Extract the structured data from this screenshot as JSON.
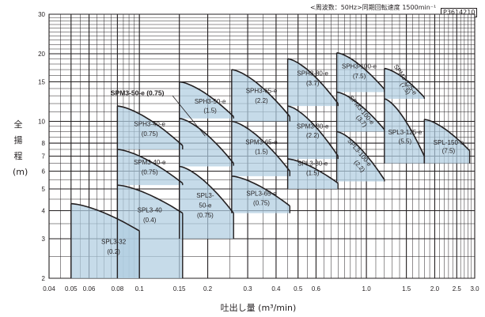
{
  "header": {
    "note": "<周波数：50Hz>同期回転速度 1500min⁻¹",
    "code": "P3614210"
  },
  "chart_data": {
    "type": "area",
    "x_scale": "log",
    "y_scale": "log",
    "xlim": [
      0.04,
      3.0
    ],
    "ylim": [
      2,
      30
    ],
    "xlabel": "吐出し量 (m³/min)",
    "ylabel": [
      "全",
      "揚",
      "程",
      "(m)"
    ],
    "grid": true,
    "x_ticks": [
      {
        "v": 0.04,
        "t": "0.04"
      },
      {
        "v": 0.05,
        "t": "0.05"
      },
      {
        "v": 0.06,
        "t": "0.06"
      },
      {
        "v": 0.08,
        "t": "0.08"
      },
      {
        "v": 0.1,
        "t": "0.1"
      },
      {
        "v": 0.15,
        "t": "0.15"
      },
      {
        "v": 0.2,
        "t": "0.2"
      },
      {
        "v": 0.3,
        "t": "0.3"
      },
      {
        "v": 0.4,
        "t": "0.4"
      },
      {
        "v": 0.5,
        "t": "0.5"
      },
      {
        "v": 0.6,
        "t": "0.6"
      },
      {
        "v": 1.0,
        "t": "1.0"
      },
      {
        "v": 1.5,
        "t": "1.5"
      },
      {
        "v": 2.0,
        "t": "2.0"
      },
      {
        "v": 2.5,
        "t": "2.5"
      },
      {
        "v": 3.0,
        "t": "3.0"
      }
    ],
    "y_ticks": [
      {
        "v": 2,
        "t": "2"
      },
      {
        "v": 3,
        "t": "3"
      },
      {
        "v": 4,
        "t": "4"
      },
      {
        "v": 5,
        "t": "5"
      },
      {
        "v": 6,
        "t": "6"
      },
      {
        "v": 7,
        "t": "7"
      },
      {
        "v": 8,
        "t": "8"
      },
      {
        "v": 10,
        "t": "10"
      },
      {
        "v": 15,
        "t": "15"
      },
      {
        "v": 20,
        "t": "20"
      },
      {
        "v": 30,
        "t": "30"
      }
    ],
    "series": [
      {
        "name": "SPL3-32 (0.2)",
        "x_range": [
          0.05,
          0.1
        ],
        "h_left": 4.3,
        "h_right": 3.25,
        "floor": 2.0,
        "label": [
          {
            "text": "SPL3-32",
            "x": 0.077,
            "y": 2.9
          },
          {
            "text": "(0.2)",
            "x": 0.077,
            "y": 2.62
          }
        ]
      },
      {
        "name": "SPL3-40 (0.4)",
        "x_range": [
          0.08,
          0.155
        ],
        "h_left": 5.2,
        "h_right": 3.9,
        "floor": 2.0,
        "label": [
          {
            "text": "SPL3-40",
            "x": 0.111,
            "y": 4.0
          },
          {
            "text": "(0.4)",
            "x": 0.111,
            "y": 3.62
          }
        ]
      },
      {
        "name": "SPM3-40-e (0.75)",
        "x_range": [
          0.08,
          0.155
        ],
        "h_left": 7.5,
        "h_right": 5.3,
        "floor": 5.2,
        "label": [
          {
            "text": "SPM3-40-e",
            "x": 0.111,
            "y": 6.55
          },
          {
            "text": "(0.75)",
            "x": 0.111,
            "y": 5.9
          }
        ]
      },
      {
        "name": "SPH3-40-e (0.75)",
        "x_range": [
          0.08,
          0.155
        ],
        "h_left": 11.7,
        "h_right": 7.8,
        "floor": 7.5,
        "label": [
          {
            "text": "SPH3-40-e",
            "x": 0.111,
            "y": 9.7
          },
          {
            "text": "(0.75)",
            "x": 0.111,
            "y": 8.75
          }
        ]
      },
      {
        "name": "SPL3-50-e (0.75)",
        "x_range": [
          0.15,
          0.26
        ],
        "h_left": 6.3,
        "h_right": 3.9,
        "floor": 3.0,
        "label": [
          {
            "text": "SPL3-",
            "x": 0.195,
            "y": 4.65
          },
          {
            "text": "50-e",
            "x": 0.195,
            "y": 4.2
          },
          {
            "text": "(0.75)",
            "x": 0.195,
            "y": 3.8
          }
        ]
      },
      {
        "name": "SPM3-50-e (0.75)",
        "x_range": [
          0.15,
          0.26
        ],
        "h_left": 10.3,
        "h_right": 6.5,
        "floor": 6.3,
        "dashed_right": true,
        "label": [
          {
            "text": "SPM3-50-e (0.75)",
            "x": 0.098,
            "y": 13.3,
            "bold": true
          }
        ]
      },
      {
        "name": "SPH3-50-e (1.5)",
        "x_range": [
          0.15,
          0.26
        ],
        "h_left": 15.0,
        "h_right": 10.5,
        "floor": 10.3,
        "label": [
          {
            "text": "SPH3-50-e",
            "x": 0.205,
            "y": 12.2
          },
          {
            "text": "(1.5)",
            "x": 0.205,
            "y": 11.1
          }
        ]
      },
      {
        "name": "SPL3-65-e (0.75)",
        "x_range": [
          0.255,
          0.46
        ],
        "h_left": 5.7,
        "h_right": 4.2,
        "floor": 3.9,
        "label": [
          {
            "text": "SPL3-65-e",
            "x": 0.345,
            "y": 4.75
          },
          {
            "text": "(0.75)",
            "x": 0.345,
            "y": 4.3
          }
        ]
      },
      {
        "name": "SPM3-65-e (1.5)",
        "x_range": [
          0.255,
          0.46
        ],
        "h_left": 10.0,
        "h_right": 6.0,
        "floor": 5.7,
        "label": [
          {
            "text": "SPM3-65-e",
            "x": 0.345,
            "y": 8.05
          },
          {
            "text": "(1.5)",
            "x": 0.345,
            "y": 7.3
          }
        ]
      },
      {
        "name": "SPH3-65-e (2.2)",
        "x_range": [
          0.255,
          0.46
        ],
        "h_left": 17.0,
        "h_right": 10.5,
        "floor": 10.0,
        "label": [
          {
            "text": "SPH3-65-e",
            "x": 0.345,
            "y": 13.6
          },
          {
            "text": "(2.2)",
            "x": 0.345,
            "y": 12.3
          }
        ]
      },
      {
        "name": "SPL3-80-e (1.5)",
        "x_range": [
          0.45,
          0.75
        ],
        "h_left": 6.8,
        "h_right": 5.3,
        "floor": 5.0,
        "label": [
          {
            "text": "SPL3-80-e",
            "x": 0.58,
            "y": 6.45
          },
          {
            "text": "(1.5)",
            "x": 0.58,
            "y": 5.85
          }
        ]
      },
      {
        "name": "SPM3-80-e (2.2)",
        "x_range": [
          0.45,
          0.75
        ],
        "h_left": 11.7,
        "h_right": 7.0,
        "floor": 6.8,
        "label": [
          {
            "text": "SPM3-80-e",
            "x": 0.58,
            "y": 9.45
          },
          {
            "text": "(2.2)",
            "x": 0.58,
            "y": 8.6
          }
        ]
      },
      {
        "name": "SPH3-80-e (3.7)",
        "x_range": [
          0.45,
          0.75
        ],
        "h_left": 19.0,
        "h_right": 12.0,
        "floor": 11.7,
        "label": [
          {
            "text": "SPH3-80-e",
            "x": 0.58,
            "y": 16.3
          },
          {
            "text": "(3.7)",
            "x": 0.58,
            "y": 14.7
          }
        ]
      },
      {
        "name": "SPL3-100-e (2.2)",
        "x_range": [
          0.74,
          1.2
        ],
        "h_left": 9.0,
        "h_right": 5.5,
        "floor": 5.4,
        "label": [
          {
            "text": "SPL3-100-e",
            "x": 0.93,
            "y": 7.25,
            "rotate": 50
          },
          {
            "text": "(2.2)",
            "x": 0.93,
            "y": 6.3,
            "rotate": 50
          }
        ]
      },
      {
        "name": "SPM3-100-e (3.7)",
        "x_range": [
          0.74,
          1.2
        ],
        "h_left": 13.5,
        "h_right": 9.2,
        "floor": 9.0,
        "label": [
          {
            "text": "SPM3-100-e",
            "x": 0.95,
            "y": 11.2,
            "rotate": 50
          },
          {
            "text": "(3.7)",
            "x": 0.95,
            "y": 10.0,
            "rotate": 50
          }
        ]
      },
      {
        "name": "SPH3-100-e (7.5)",
        "x_range": [
          0.74,
          1.2
        ],
        "h_left": 20.2,
        "h_right": 13.9,
        "floor": 13.5,
        "label": [
          {
            "text": "SPH3-100-e",
            "x": 0.93,
            "y": 17.5
          },
          {
            "text": "(7.5)",
            "x": 0.93,
            "y": 15.8
          }
        ]
      },
      {
        "name": "SPL3-125-e (5.5)",
        "x_range": [
          1.2,
          1.8
        ],
        "h_left": 12.6,
        "h_right": 7.0,
        "floor": 6.5,
        "label": [
          {
            "text": "SPL3-125-e",
            "x": 1.48,
            "y": 8.9
          },
          {
            "text": "(5.5)",
            "x": 1.48,
            "y": 8.1
          }
        ]
      },
      {
        "name": "SPM3-125-e (7.5)",
        "x_range": [
          1.2,
          1.8
        ],
        "h_left": 17.2,
        "h_right": 12.8,
        "floor": 12.6,
        "label": [
          {
            "text": "SPM3-125-e",
            "x": 1.48,
            "y": 15.3,
            "rotate": 55
          },
          {
            "text": "(7.5)",
            "x": 1.48,
            "y": 14.0,
            "rotate": 55
          }
        ]
      },
      {
        "name": "SPL-150-e (7.5)",
        "x_range": [
          1.8,
          2.85
        ],
        "h_left": 10.2,
        "h_right": 7.4,
        "floor": 6.5,
        "label": [
          {
            "text": "SPL-150-e",
            "x": 2.3,
            "y": 8.0
          },
          {
            "text": "(7.5)",
            "x": 2.3,
            "y": 7.35
          }
        ]
      }
    ]
  }
}
